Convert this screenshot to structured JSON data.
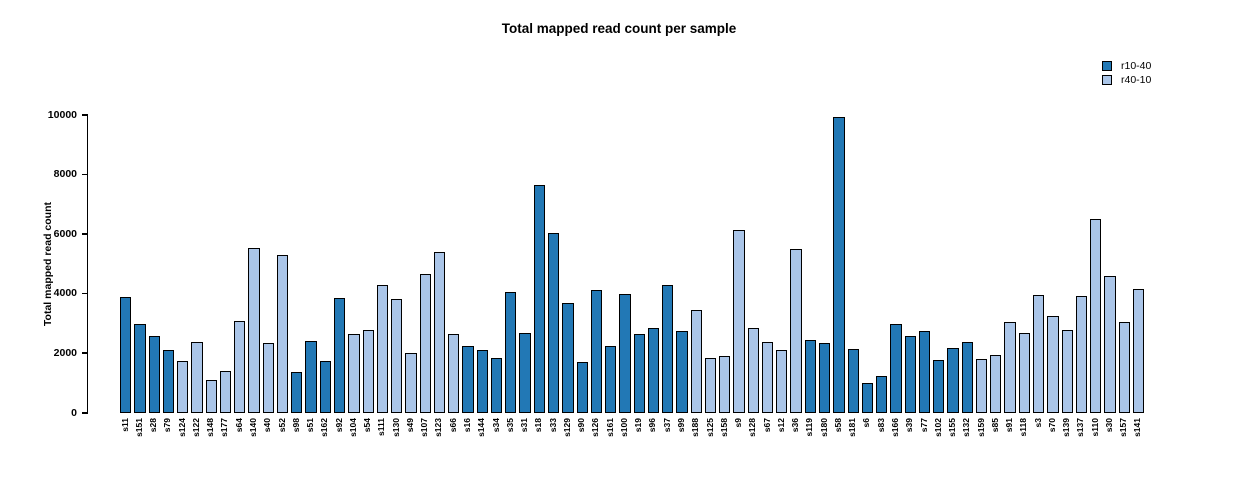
{
  "title": "Total mapped read count per sample",
  "y_axis": {
    "label": "Total mapped read count",
    "ticks": [
      0,
      2000,
      4000,
      6000,
      8000,
      10000
    ],
    "max": 10000
  },
  "legend": [
    {
      "label": "r10-40",
      "color": "#2278b5"
    },
    {
      "label": "r40-10",
      "color": "#aac5e8"
    }
  ],
  "chart_data": {
    "type": "bar",
    "title": "Total mapped read count per sample",
    "xlabel": "",
    "ylabel": "Total mapped read count",
    "ylim": [
      0,
      10000
    ],
    "yticks": [
      0,
      2000,
      4000,
      6000,
      8000,
      10000
    ],
    "grid": false,
    "legend_position": "top-right",
    "series_colors": {
      "r10-40": "#2278b5",
      "r40-10": "#aac5e8"
    },
    "bars": [
      {
        "sample": "s11",
        "group": "r10-40",
        "value": 3900
      },
      {
        "sample": "s151",
        "group": "r10-40",
        "value": 3000
      },
      {
        "sample": "s28",
        "group": "r10-40",
        "value": 2600
      },
      {
        "sample": "s79",
        "group": "r10-40",
        "value": 2100
      },
      {
        "sample": "s124",
        "group": "r40-10",
        "value": 1750
      },
      {
        "sample": "s122",
        "group": "r40-10",
        "value": 2400
      },
      {
        "sample": "s148",
        "group": "r40-10",
        "value": 1100
      },
      {
        "sample": "s177",
        "group": "r40-10",
        "value": 1425
      },
      {
        "sample": "s64",
        "group": "r40-10",
        "value": 3100
      },
      {
        "sample": "s140",
        "group": "r40-10",
        "value": 5550
      },
      {
        "sample": "s40",
        "group": "r40-10",
        "value": 2350
      },
      {
        "sample": "s52",
        "group": "r40-10",
        "value": 5300
      },
      {
        "sample": "s98",
        "group": "r10-40",
        "value": 1375
      },
      {
        "sample": "s51",
        "group": "r10-40",
        "value": 2425
      },
      {
        "sample": "s162",
        "group": "r10-40",
        "value": 1750
      },
      {
        "sample": "s92",
        "group": "r10-40",
        "value": 3850
      },
      {
        "sample": "s104",
        "group": "r40-10",
        "value": 2650
      },
      {
        "sample": "s54",
        "group": "r40-10",
        "value": 2800
      },
      {
        "sample": "s111",
        "group": "r40-10",
        "value": 4300
      },
      {
        "sample": "s130",
        "group": "r40-10",
        "value": 3825
      },
      {
        "sample": "s49",
        "group": "r40-10",
        "value": 2025
      },
      {
        "sample": "s107",
        "group": "r40-10",
        "value": 4650
      },
      {
        "sample": "s123",
        "group": "r40-10",
        "value": 5400
      },
      {
        "sample": "s66",
        "group": "r40-10",
        "value": 2650
      },
      {
        "sample": "s16",
        "group": "r10-40",
        "value": 2250
      },
      {
        "sample": "s144",
        "group": "r10-40",
        "value": 2100
      },
      {
        "sample": "s34",
        "group": "r10-40",
        "value": 1850
      },
      {
        "sample": "s35",
        "group": "r10-40",
        "value": 4075
      },
      {
        "sample": "s31",
        "group": "r10-40",
        "value": 2675
      },
      {
        "sample": "s18",
        "group": "r10-40",
        "value": 7650
      },
      {
        "sample": "s33",
        "group": "r10-40",
        "value": 6050
      },
      {
        "sample": "s129",
        "group": "r10-40",
        "value": 3700
      },
      {
        "sample": "s90",
        "group": "r10-40",
        "value": 1700
      },
      {
        "sample": "s126",
        "group": "r10-40",
        "value": 4125
      },
      {
        "sample": "s161",
        "group": "r10-40",
        "value": 2250
      },
      {
        "sample": "s100",
        "group": "r10-40",
        "value": 4000
      },
      {
        "sample": "s19",
        "group": "r10-40",
        "value": 2650
      },
      {
        "sample": "s96",
        "group": "r10-40",
        "value": 2850
      },
      {
        "sample": "s37",
        "group": "r10-40",
        "value": 4300
      },
      {
        "sample": "s99",
        "group": "r10-40",
        "value": 2750
      },
      {
        "sample": "s188",
        "group": "r40-10",
        "value": 3450
      },
      {
        "sample": "s125",
        "group": "r40-10",
        "value": 1850
      },
      {
        "sample": "s158",
        "group": "r40-10",
        "value": 1900
      },
      {
        "sample": "s9",
        "group": "r40-10",
        "value": 6150
      },
      {
        "sample": "s128",
        "group": "r40-10",
        "value": 2850
      },
      {
        "sample": "s67",
        "group": "r40-10",
        "value": 2400
      },
      {
        "sample": "s12",
        "group": "r40-10",
        "value": 2100
      },
      {
        "sample": "s36",
        "group": "r40-10",
        "value": 5500
      },
      {
        "sample": "s119",
        "group": "r10-40",
        "value": 2450
      },
      {
        "sample": "s180",
        "group": "r10-40",
        "value": 2350
      },
      {
        "sample": "s58",
        "group": "r10-40",
        "value": 9950
      },
      {
        "sample": "s181",
        "group": "r10-40",
        "value": 2150
      },
      {
        "sample": "s6",
        "group": "r10-40",
        "value": 1000
      },
      {
        "sample": "s83",
        "group": "r10-40",
        "value": 1250
      },
      {
        "sample": "s166",
        "group": "r10-40",
        "value": 3000
      },
      {
        "sample": "s39",
        "group": "r10-40",
        "value": 2600
      },
      {
        "sample": "s77",
        "group": "r10-40",
        "value": 2750
      },
      {
        "sample": "s102",
        "group": "r10-40",
        "value": 1775
      },
      {
        "sample": "s155",
        "group": "r10-40",
        "value": 2175
      },
      {
        "sample": "s132",
        "group": "r10-40",
        "value": 2400
      },
      {
        "sample": "s159",
        "group": "r40-10",
        "value": 1825
      },
      {
        "sample": "s85",
        "group": "r40-10",
        "value": 1950
      },
      {
        "sample": "s91",
        "group": "r40-10",
        "value": 3050
      },
      {
        "sample": "s118",
        "group": "r40-10",
        "value": 2700
      },
      {
        "sample": "s3",
        "group": "r40-10",
        "value": 3950
      },
      {
        "sample": "s70",
        "group": "r40-10",
        "value": 3250
      },
      {
        "sample": "s139",
        "group": "r40-10",
        "value": 2800
      },
      {
        "sample": "s137",
        "group": "r40-10",
        "value": 3925
      },
      {
        "sample": "s110",
        "group": "r40-10",
        "value": 6500
      },
      {
        "sample": "s30",
        "group": "r40-10",
        "value": 4600
      },
      {
        "sample": "s157",
        "group": "r40-10",
        "value": 3050
      },
      {
        "sample": "s141",
        "group": "r40-10",
        "value": 4175
      }
    ]
  }
}
